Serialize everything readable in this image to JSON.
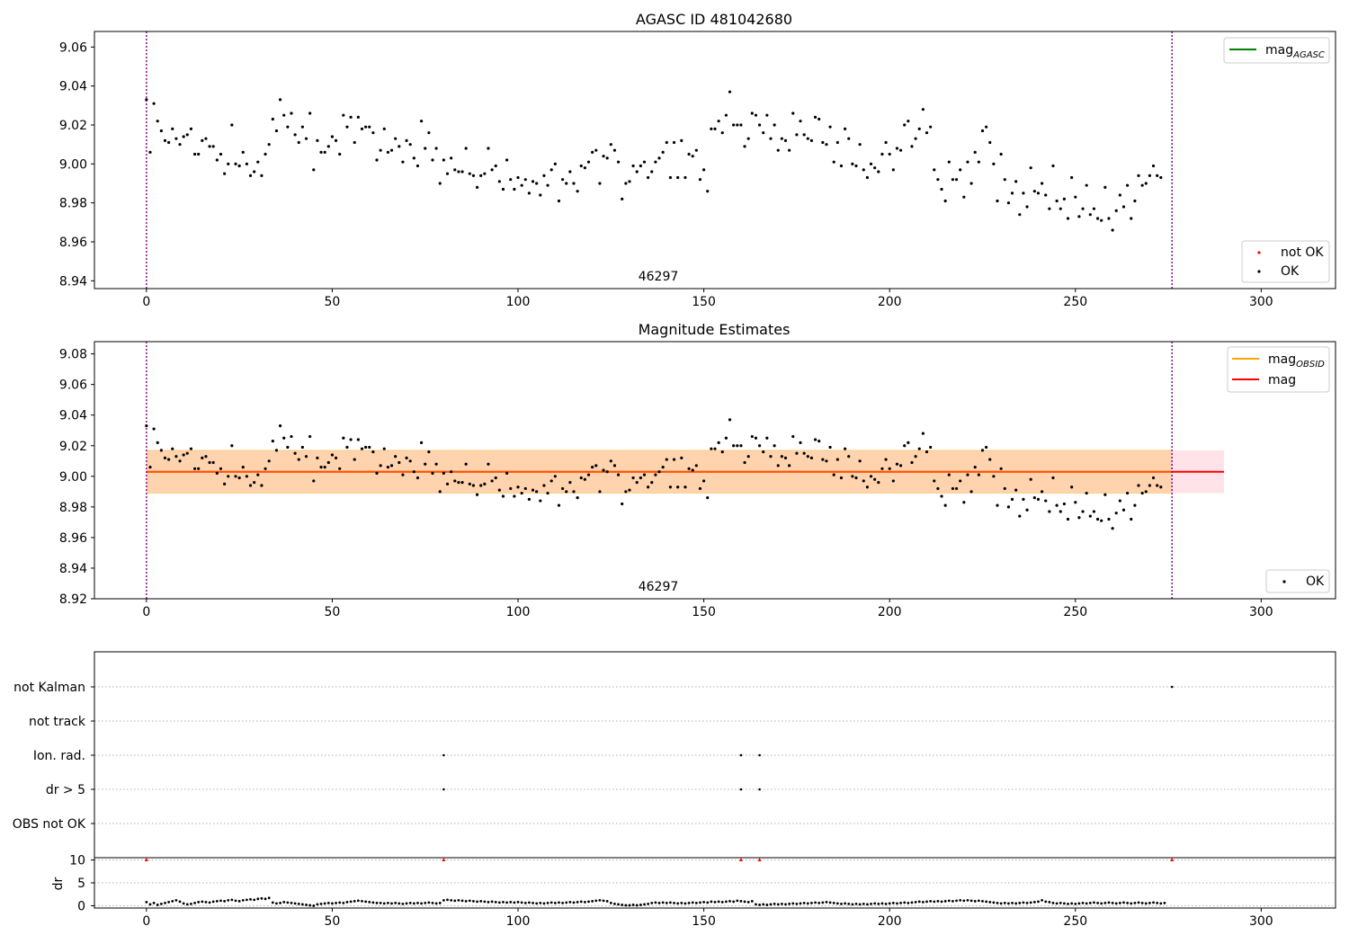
{
  "chart_data": [
    {
      "type": "scatter",
      "title": "AGASC ID 481042680",
      "xlim": [
        -14,
        320
      ],
      "ylim": [
        8.936,
        9.068
      ],
      "xticks": [
        "0",
        "50",
        "100",
        "150",
        "200",
        "250",
        "300"
      ],
      "yticks": [
        "8.94",
        "8.96",
        "8.98",
        "9.00",
        "9.02",
        "9.04",
        "9.06"
      ],
      "vlines": [
        0,
        276
      ],
      "annotation": {
        "text": "46297",
        "x": 138
      },
      "legend_upper": {
        "position": "top-right",
        "entries": [
          {
            "label_main": "mag",
            "label_sub": "AGASC",
            "color": "#008000",
            "kind": "line"
          }
        ]
      },
      "legend_lower": {
        "position": "bottom-right",
        "entries": [
          {
            "label": "not OK",
            "color": "#ff0000",
            "kind": "point"
          },
          {
            "label": "OK",
            "color": "#000000",
            "kind": "point"
          }
        ]
      },
      "series": [
        {
          "name": "OK",
          "color": "#000000",
          "x_start": 0,
          "x_step": 1,
          "y": [
            9.033,
            9.006,
            9.031,
            9.022,
            9.017,
            9.012,
            9.011,
            9.018,
            9.013,
            9.01,
            9.014,
            9.015,
            9.018,
            9.005,
            9.005,
            9.012,
            9.013,
            9.009,
            9.009,
            9.002,
            9.005,
            8.995,
            9.0,
            9.02,
            9.0,
            8.999,
            9.006,
            9.0,
            8.994,
            8.996,
            9.001,
            8.994,
            9.005,
            9.01,
            9.023,
            9.017,
            9.033,
            9.025,
            9.019,
            9.026,
            9.015,
            9.011,
            9.019,
            9.013,
            9.026,
            8.997,
            9.012,
            9.006,
            9.006,
            9.009,
            9.014,
            9.012,
            9.005,
            9.025,
            9.019,
            9.024,
            9.011,
            9.024,
            9.018,
            9.019,
            9.019,
            9.016,
            9.002,
            9.007,
            9.018,
            9.006,
            9.007,
            9.013,
            9.009,
            9.001,
            9.012,
            9.01,
            9.003,
            8.999,
            9.022,
            9.008,
            9.016,
            9.002,
            9.008,
            8.99,
            9.002,
            8.995,
            9.003,
            8.997,
            8.996,
            8.996,
            9.008,
            8.995,
            8.994,
            8.988,
            8.994,
            8.995,
            9.008,
            8.997,
            8.999,
            8.991,
            8.987,
            9.002,
            8.992,
            8.987,
            8.993,
            8.989,
            8.992,
            8.985,
            8.991,
            8.99,
            8.984,
            8.994,
            8.989,
            8.997,
            9.0,
            8.981,
            8.992,
            8.99,
            8.996,
            8.99,
            8.986,
            8.999,
            8.998,
            9.001,
            9.006,
            9.007,
            8.99,
            9.004,
            9.003,
            9.01,
            9.007,
            9.001,
            8.982,
            8.99,
            8.991,
            8.999,
            8.996,
            8.999,
            9.001,
            8.993,
            8.996,
            9.001,
            9.003,
            9.006,
            9.011,
            8.993,
            9.011,
            8.993,
            9.012,
            8.993,
            9.005,
            9.004,
            9.007,
            8.992,
            8.997,
            8.986,
            9.018,
            9.018,
            9.022,
            9.016,
            9.025,
            9.037,
            9.02,
            9.02,
            9.02,
            9.009,
            9.013,
            9.026,
            9.025,
            9.02,
            9.016,
            9.025,
            9.013,
            9.02,
            9.007,
            9.013,
            9.012,
            9.007,
            9.026,
            9.015,
            9.022,
            9.015,
            9.013,
            9.012,
            9.024,
            9.023,
            9.011,
            9.01,
            9.019,
            9.001,
            9.011,
            8.999,
            9.018,
            9.013,
            9.0,
            8.999,
            9.01,
            8.997,
            8.993,
            9.0,
            8.998,
            8.996,
            9.005,
            9.011,
            9.005,
            8.997,
            9.008,
            9.007,
            9.02,
            9.022,
            9.009,
            9.013,
            9.018,
            9.028,
            9.016,
            9.019,
            8.997,
            8.992,
            8.987,
            8.981,
            9.001,
            8.992,
            8.992,
            8.997,
            8.983,
            9.001,
            8.99,
            9.006,
            9.001,
            9.017,
            9.019,
            9.011,
            9.0,
            8.981,
            9.005,
            8.992,
            8.98,
            8.985,
            8.991,
            8.974,
            8.985,
            8.978,
            8.998,
            8.986,
            8.985,
            8.99,
            8.984,
            8.977,
            8.999,
            8.981,
            8.977,
            8.982,
            8.972,
            8.993,
            8.983,
            8.973,
            8.977,
            8.989,
            8.974,
            8.977,
            8.972,
            8.971,
            8.988,
            8.972,
            8.966,
            8.976,
            8.984,
            8.978,
            8.989,
            8.972,
            8.981,
            8.994,
            8.989,
            8.99,
            8.994,
            8.999,
            8.994,
            8.993
          ]
        }
      ]
    },
    {
      "type": "scatter",
      "title": "Magnitude Estimates",
      "xlim": [
        -14,
        320
      ],
      "ylim": [
        8.92,
        9.088
      ],
      "xticks": [
        "0",
        "50",
        "100",
        "150",
        "200",
        "250",
        "300"
      ],
      "yticks": [
        "8.92",
        "8.94",
        "8.96",
        "8.98",
        "9.00",
        "9.02",
        "9.04",
        "9.06",
        "9.08"
      ],
      "vlines": [
        0,
        276
      ],
      "annotation": {
        "text": "46297",
        "x": 138
      },
      "mag": 9.003,
      "band_pink": {
        "x0": 0,
        "x1": 290,
        "y0": 8.989,
        "y1": 9.017,
        "color": "#ffc0cb"
      },
      "band_orange": {
        "x0": 0,
        "x1": 276,
        "y0": 8.989,
        "y1": 9.017,
        "color": "#ffa500"
      },
      "legend_upper": {
        "position": "top-right",
        "entries": [
          {
            "label_main": "mag",
            "label_sub": "OBSID",
            "color": "#ffa500",
            "kind": "line"
          },
          {
            "label": "mag",
            "color": "#ff0000",
            "kind": "line"
          }
        ]
      },
      "legend_lower": {
        "position": "bottom-right",
        "entries": [
          {
            "label": "OK",
            "color": "#000000",
            "kind": "point"
          }
        ]
      }
    },
    {
      "type": "scatter",
      "xlim": [
        -14,
        320
      ],
      "flag_labels": [
        "not Kalman",
        "not track",
        "Ion. rad.",
        "dr > 5",
        "OBS not OK"
      ],
      "flag_points": {
        "Ion. rad.": [
          80,
          160,
          165
        ],
        "dr > 5": [
          80,
          160,
          165
        ],
        "not Kalman": [
          276
        ]
      },
      "dr_ylabel": "dr",
      "dr_ylim": [
        -0.5,
        10.5
      ],
      "dr_yticks": [
        "0",
        "5",
        "10"
      ],
      "dr_red_points": [
        0,
        80,
        160,
        165,
        276
      ],
      "xticks": [
        "0",
        "50",
        "100",
        "150",
        "200",
        "250",
        "300"
      ],
      "dr_values": [
        0.8,
        0.3,
        0.6,
        0.2,
        0.4,
        0.6,
        0.8,
        1.0,
        1.2,
        0.9,
        0.5,
        0.3,
        0.4,
        0.6,
        0.8,
        0.9,
        0.8,
        0.7,
        0.9,
        1.0,
        1.1,
        1.0,
        1.2,
        1.3,
        1.1,
        1.0,
        1.2,
        1.3,
        1.4,
        1.3,
        1.5,
        1.6,
        1.5,
        1.7,
        0.7,
        0.5,
        0.6,
        0.8,
        0.7,
        0.6,
        0.5,
        0.4,
        0.3,
        0.2,
        0.1,
        0.0,
        0.3,
        0.4,
        0.5,
        0.6,
        0.5,
        0.6,
        0.7,
        0.6,
        0.8,
        0.9,
        1.0,
        1.1,
        1.0,
        0.9,
        0.8,
        0.7,
        0.6,
        0.6,
        0.5,
        0.6,
        0.5,
        0.6,
        0.5,
        0.4,
        0.5,
        0.6,
        0.5,
        0.6,
        0.5,
        0.6,
        0.7,
        0.6,
        0.5,
        0.6,
        1.2,
        1.3,
        1.2,
        1.1,
        1.2,
        1.1,
        1.0,
        1.1,
        1.0,
        0.9,
        1.0,
        0.9,
        0.8,
        0.9,
        0.8,
        0.7,
        0.8,
        0.7,
        0.8,
        0.7,
        0.8,
        0.7,
        0.6,
        0.7,
        0.6,
        0.5,
        0.6,
        0.5,
        0.6,
        0.7,
        0.6,
        0.7,
        0.6,
        0.7,
        0.8,
        0.7,
        0.8,
        0.9,
        0.8,
        0.9,
        1.0,
        1.1,
        1.2,
        1.1,
        1.0,
        0.6,
        0.4,
        0.3,
        0.2,
        0.1,
        0.1,
        0.2,
        0.1,
        0.2,
        0.3,
        0.4,
        0.6,
        0.7,
        0.6,
        0.7,
        0.6,
        0.7,
        0.6,
        0.5,
        0.6,
        0.5,
        0.6,
        0.7,
        0.6,
        0.7,
        0.8,
        0.7,
        0.9,
        0.8,
        0.9,
        0.8,
        0.9,
        1.0,
        0.9,
        1.1,
        1.0,
        0.9,
        0.8,
        1.0,
        0.3,
        0.2,
        0.3,
        0.2,
        0.3,
        0.4,
        0.3,
        0.4,
        0.3,
        0.4,
        0.5,
        0.4,
        0.5,
        0.6,
        0.5,
        0.6,
        0.7,
        0.6,
        0.7,
        0.8,
        0.7,
        0.6,
        0.5,
        0.4,
        0.5,
        0.4,
        0.3,
        0.4,
        0.3,
        0.4,
        0.3,
        0.4,
        0.5,
        0.4,
        0.5,
        0.4,
        0.5,
        0.6,
        0.5,
        0.6,
        0.7,
        0.6,
        0.7,
        0.8,
        0.9,
        0.8,
        0.9,
        1.0,
        0.9,
        1.0,
        0.9,
        1.0,
        1.1,
        1.0,
        1.1,
        1.2,
        1.1,
        1.2,
        1.1,
        1.0,
        1.1,
        1.0,
        0.9,
        0.8,
        0.7,
        0.6,
        0.5,
        0.6,
        0.5,
        0.6,
        0.5,
        0.6,
        0.7,
        0.6,
        0.7,
        0.8,
        0.9,
        1.2,
        0.9,
        0.8,
        0.6,
        0.5,
        0.6,
        0.5,
        0.4,
        0.5,
        0.4,
        0.5,
        0.6,
        0.5,
        0.6,
        0.7,
        0.6,
        0.5,
        0.6,
        0.7,
        0.6,
        0.5,
        0.6,
        0.7,
        0.6,
        0.5,
        0.6,
        0.7,
        0.6,
        0.5,
        0.6,
        0.7,
        0.6,
        0.5,
        0.6
      ]
    }
  ]
}
